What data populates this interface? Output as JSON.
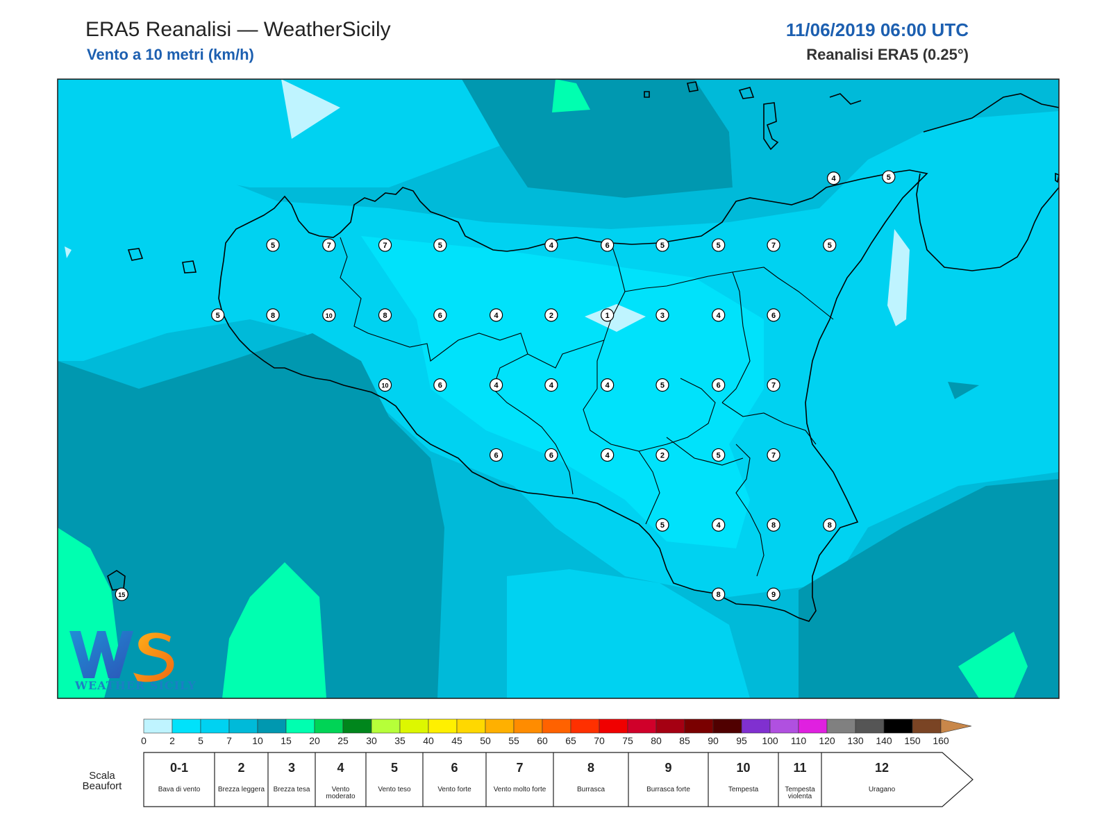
{
  "header": {
    "title": "ERA5 Reanalisi — WeatherSicily",
    "subtitle": "Vento a 10 metri (km/h)",
    "datetime": "11/06/2019 06:00 UTC",
    "source": "Reanalisi ERA5 (0.25°)"
  },
  "logo": {
    "text": "WEATHER SICILY",
    "letters": "WS"
  },
  "colors": {
    "c0": "#bff4ff",
    "c2": "#00e2fb",
    "c5": "#00d2f1",
    "c7": "#00bad9",
    "c10": "#0098b0",
    "c15": "#00ffb0",
    "c20": "#00d456",
    "c25": "#00861c",
    "c30": "#b6ff39",
    "c35": "#ddf700",
    "c40": "#fff000",
    "c45": "#ffd800",
    "c50": "#ffb000",
    "c55": "#ff8c00",
    "c60": "#ff6200",
    "c65": "#ff3000",
    "c70": "#f00000",
    "c75": "#d0002a",
    "c80": "#a50012",
    "c85": "#7a0000",
    "c90": "#500000",
    "c95": "#8030d0",
    "c100": "#b050e0",
    "c110": "#e020e0",
    "c120": "#808080",
    "c130": "#555555",
    "c140": "#000000",
    "c150": "#7a4424",
    "c160": "#c8874a",
    "coast": "#000000"
  },
  "station_values": [
    {
      "v": "4",
      "lon": 0.775,
      "lat": 0.16
    },
    {
      "v": "5",
      "lon": 0.83,
      "lat": 0.158
    },
    {
      "v": "5",
      "lon": 0.215,
      "lat": 0.268
    },
    {
      "v": "7",
      "lon": 0.271,
      "lat": 0.268
    },
    {
      "v": "7",
      "lon": 0.327,
      "lat": 0.268
    },
    {
      "v": "5",
      "lon": 0.382,
      "lat": 0.268
    },
    {
      "v": "4",
      "lon": 0.493,
      "lat": 0.268
    },
    {
      "v": "6",
      "lon": 0.549,
      "lat": 0.268
    },
    {
      "v": "5",
      "lon": 0.604,
      "lat": 0.268
    },
    {
      "v": "5",
      "lon": 0.66,
      "lat": 0.268
    },
    {
      "v": "7",
      "lon": 0.715,
      "lat": 0.268
    },
    {
      "v": "5",
      "lon": 0.771,
      "lat": 0.268
    },
    {
      "v": "5",
      "lon": 0.16,
      "lat": 0.381
    },
    {
      "v": "8",
      "lon": 0.215,
      "lat": 0.381
    },
    {
      "v": "10",
      "lon": 0.271,
      "lat": 0.381
    },
    {
      "v": "8",
      "lon": 0.327,
      "lat": 0.381
    },
    {
      "v": "6",
      "lon": 0.382,
      "lat": 0.381
    },
    {
      "v": "4",
      "lon": 0.438,
      "lat": 0.381
    },
    {
      "v": "2",
      "lon": 0.493,
      "lat": 0.381
    },
    {
      "v": "1",
      "lon": 0.549,
      "lat": 0.381
    },
    {
      "v": "3",
      "lon": 0.604,
      "lat": 0.381
    },
    {
      "v": "4",
      "lon": 0.66,
      "lat": 0.381
    },
    {
      "v": "6",
      "lon": 0.715,
      "lat": 0.381
    },
    {
      "v": "10",
      "lon": 0.327,
      "lat": 0.494
    },
    {
      "v": "6",
      "lon": 0.382,
      "lat": 0.494
    },
    {
      "v": "4",
      "lon": 0.438,
      "lat": 0.494
    },
    {
      "v": "4",
      "lon": 0.493,
      "lat": 0.494
    },
    {
      "v": "4",
      "lon": 0.549,
      "lat": 0.494
    },
    {
      "v": "5",
      "lon": 0.604,
      "lat": 0.494
    },
    {
      "v": "6",
      "lon": 0.66,
      "lat": 0.494
    },
    {
      "v": "7",
      "lon": 0.715,
      "lat": 0.494
    },
    {
      "v": "6",
      "lon": 0.438,
      "lat": 0.607
    },
    {
      "v": "6",
      "lon": 0.493,
      "lat": 0.607
    },
    {
      "v": "4",
      "lon": 0.549,
      "lat": 0.607
    },
    {
      "v": "2",
      "lon": 0.604,
      "lat": 0.607
    },
    {
      "v": "5",
      "lon": 0.66,
      "lat": 0.607
    },
    {
      "v": "7",
      "lon": 0.715,
      "lat": 0.607
    },
    {
      "v": "5",
      "lon": 0.604,
      "lat": 0.72
    },
    {
      "v": "4",
      "lon": 0.66,
      "lat": 0.72
    },
    {
      "v": "8",
      "lon": 0.715,
      "lat": 0.72
    },
    {
      "v": "8",
      "lon": 0.771,
      "lat": 0.72
    },
    {
      "v": "8",
      "lon": 0.66,
      "lat": 0.832
    },
    {
      "v": "9",
      "lon": 0.715,
      "lat": 0.832
    },
    {
      "v": "15",
      "lon": 0.064,
      "lat": 0.832
    }
  ],
  "colorbar": {
    "ticks": [
      "0",
      "2",
      "5",
      "7",
      "10",
      "15",
      "20",
      "25",
      "30",
      "35",
      "40",
      "45",
      "50",
      "55",
      "60",
      "65",
      "70",
      "75",
      "80",
      "85",
      "90",
      "95",
      "100",
      "110",
      "120",
      "130",
      "140",
      "150",
      "160"
    ]
  },
  "beaufort": {
    "title": "Scala Beaufort",
    "cells": [
      {
        "num": "0-1",
        "desc": "Bava di vento"
      },
      {
        "num": "2",
        "desc": "Brezza leggera"
      },
      {
        "num": "3",
        "desc": "Brezza tesa"
      },
      {
        "num": "4",
        "desc": "Vento moderato"
      },
      {
        "num": "5",
        "desc": "Vento teso"
      },
      {
        "num": "6",
        "desc": "Vento forte"
      },
      {
        "num": "7",
        "desc": "Vento molto forte"
      },
      {
        "num": "8",
        "desc": "Burrasca"
      },
      {
        "num": "9",
        "desc": "Burrasca forte"
      },
      {
        "num": "10",
        "desc": "Tempesta"
      },
      {
        "num": "11",
        "desc": "Tempesta violenta"
      },
      {
        "num": "12",
        "desc": "Uragano"
      }
    ]
  }
}
